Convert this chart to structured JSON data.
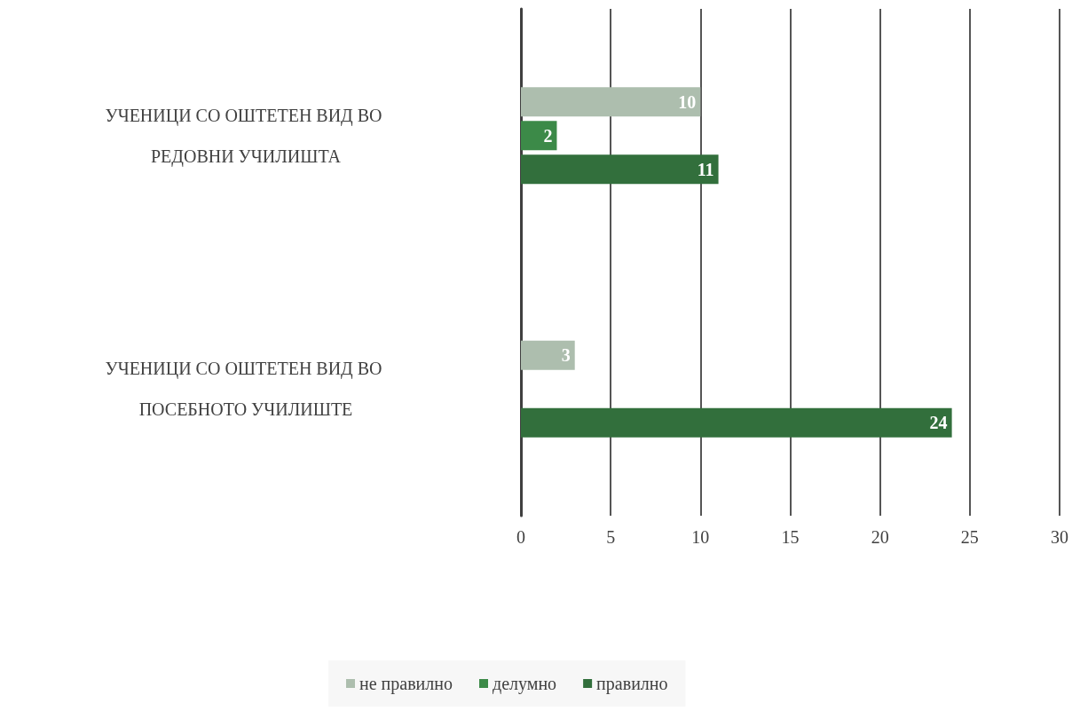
{
  "chart_data": {
    "type": "bar",
    "orientation": "horizontal",
    "categories": [
      "УЧЕНИЦИ СО ОШТЕТЕН ВИД ВО РЕДОВНИ УЧИЛИШТА",
      "УЧЕНИЦИ СО ОШТЕТЕН ВИД ВО ПОСЕБНОТО УЧИЛИШТЕ"
    ],
    "series": [
      {
        "name": "не правилно",
        "color": "#adbeae",
        "values": [
          10,
          3
        ]
      },
      {
        "name": "делумно",
        "color": "#3c8a48",
        "values": [
          2,
          null
        ]
      },
      {
        "name": "правилно",
        "color": "#326f3c",
        "values": [
          11,
          24
        ]
      }
    ],
    "xlim": [
      0,
      30
    ],
    "xticks": [
      0,
      5,
      10,
      15,
      20,
      25,
      30
    ],
    "grid": "x",
    "legend": "bottom",
    "data_labels": true
  }
}
